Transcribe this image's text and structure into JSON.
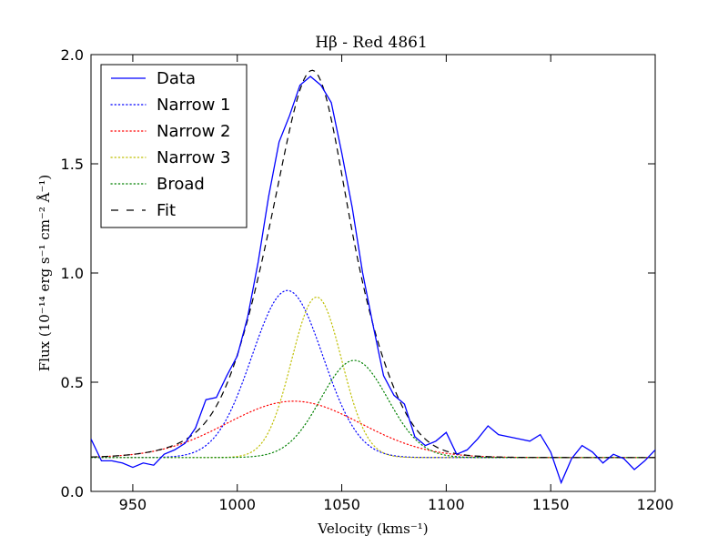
{
  "chart_data": {
    "type": "line",
    "title": "Hβ - Red 4861",
    "xlabel": "Velocity (kms⁻¹)",
    "ylabel": "Flux (10⁻¹⁴ erg s⁻¹ cm⁻² Å⁻¹)",
    "xlim": [
      930,
      1200
    ],
    "ylim": [
      0.0,
      2.0
    ],
    "xticks": [
      950,
      1000,
      1050,
      1100,
      1150,
      1200
    ],
    "yticks": [
      0.0,
      0.5,
      1.0,
      1.5,
      2.0
    ],
    "xtick_labels": [
      "950",
      "1000",
      "1050",
      "1100",
      "1150",
      "1200"
    ],
    "ytick_labels": [
      "0.0",
      "0.5",
      "1.0",
      "1.5",
      "2.0"
    ],
    "grid": false,
    "legend_position": "top-left",
    "baseline": 0.155,
    "series": [
      {
        "name": "Data",
        "color": "#0000ff",
        "style": "solid",
        "x": [
          930,
          935,
          940,
          945,
          950,
          955,
          960,
          965,
          970,
          975,
          980,
          985,
          990,
          995,
          1000,
          1005,
          1010,
          1015,
          1020,
          1025,
          1030,
          1035,
          1040,
          1045,
          1050,
          1055,
          1060,
          1065,
          1070,
          1075,
          1080,
          1085,
          1090,
          1095,
          1100,
          1105,
          1110,
          1115,
          1120,
          1125,
          1130,
          1135,
          1140,
          1145,
          1150,
          1155,
          1160,
          1165,
          1170,
          1175,
          1180,
          1185,
          1190,
          1195,
          1200
        ],
        "y": [
          0.24,
          0.14,
          0.14,
          0.13,
          0.11,
          0.13,
          0.12,
          0.17,
          0.19,
          0.22,
          0.29,
          0.42,
          0.43,
          0.53,
          0.62,
          0.8,
          1.05,
          1.35,
          1.6,
          1.72,
          1.86,
          1.9,
          1.86,
          1.78,
          1.55,
          1.3,
          1.0,
          0.76,
          0.53,
          0.44,
          0.4,
          0.25,
          0.21,
          0.23,
          0.27,
          0.17,
          0.19,
          0.24,
          0.3,
          0.26,
          0.25,
          0.24,
          0.23,
          0.26,
          0.18,
          0.04,
          0.15,
          0.21,
          0.18,
          0.13,
          0.17,
          0.15,
          0.1,
          0.14,
          0.19
        ]
      },
      {
        "name": "Narrow 1",
        "color": "#0000ff",
        "style": "dotted",
        "gaussian": {
          "amplitude": 0.765,
          "center": 1024,
          "sigma": 17
        }
      },
      {
        "name": "Narrow 2",
        "color": "#ff0000",
        "style": "dotted",
        "gaussian": {
          "amplitude": 0.258,
          "center": 1027,
          "sigma": 32
        }
      },
      {
        "name": "Narrow 3",
        "color": "#bfbf00",
        "style": "dotted",
        "gaussian": {
          "amplitude": 0.735,
          "center": 1038,
          "sigma": 12
        }
      },
      {
        "name": "Broad",
        "color": "#008000",
        "style": "dotted",
        "gaussian": {
          "amplitude": 0.445,
          "center": 1056,
          "sigma": 16
        }
      },
      {
        "name": "Fit",
        "color": "#000000",
        "style": "dashed",
        "sum_of": [
          "Narrow 1",
          "Narrow 2",
          "Narrow 3",
          "Broad"
        ]
      }
    ]
  }
}
